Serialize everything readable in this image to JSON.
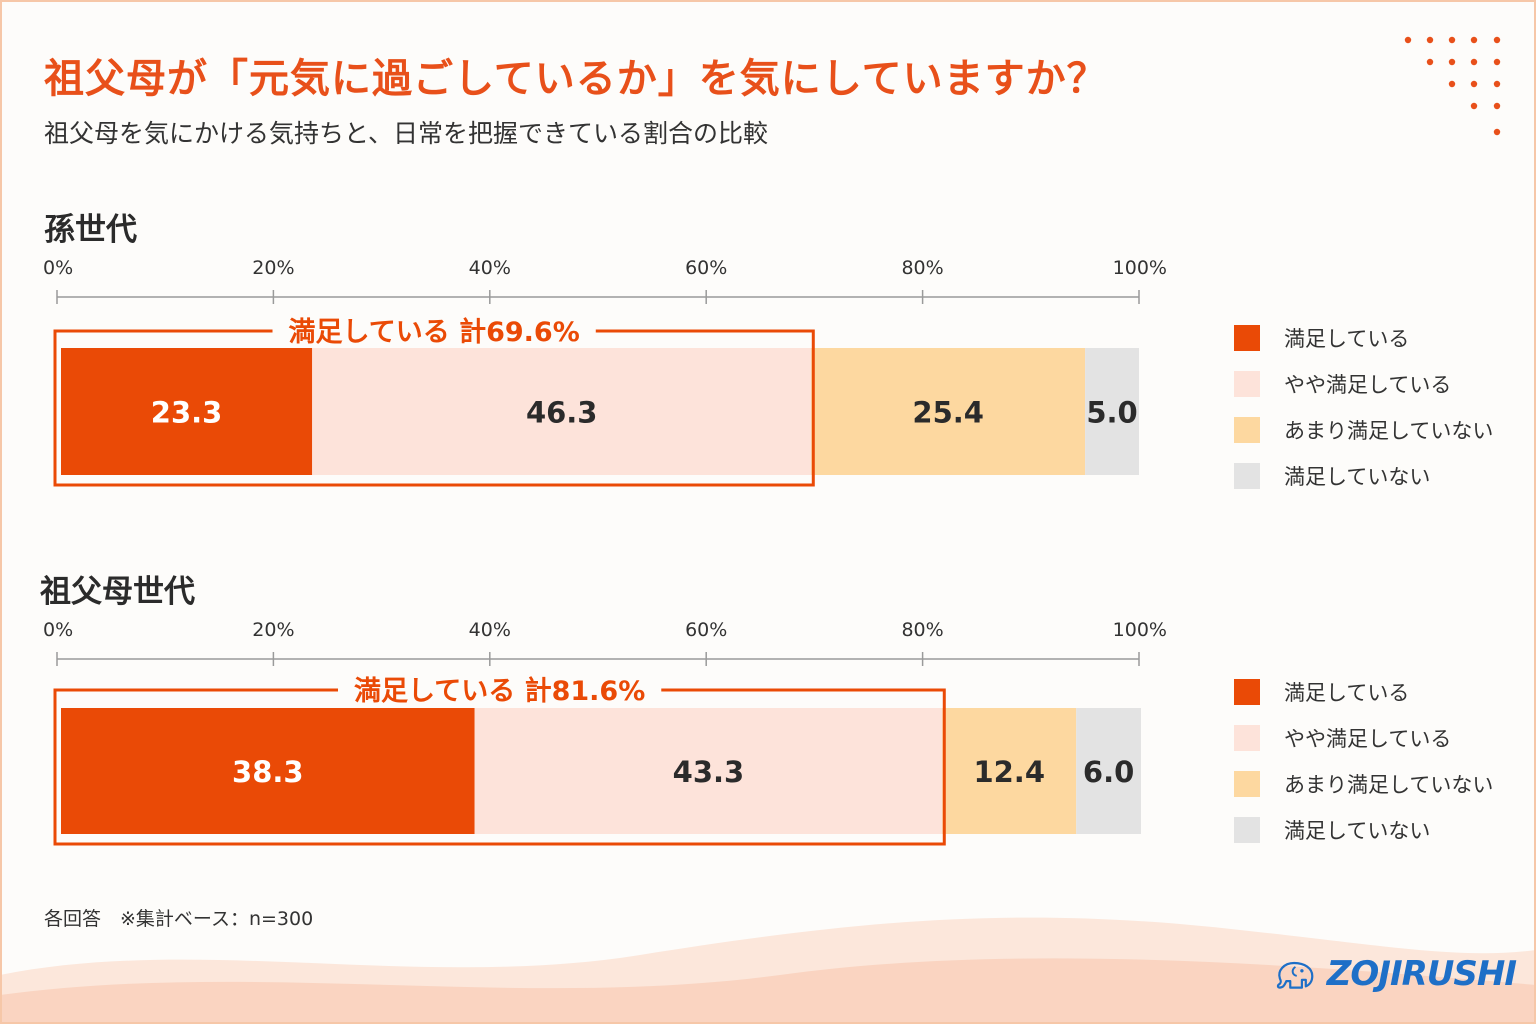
{
  "header": {
    "title": "祖父母が「元気に過ごしているか」を気にしていますか？",
    "subtitle": "祖父母を気にかける気持ちと、日常を把握できている割合の比較"
  },
  "colors": {
    "accent": "#e8501a",
    "satisfied": "#ea4a06",
    "somewhat_satisfied": "#fde3da",
    "not_very_satisfied": "#fdd8a0",
    "not_satisfied": "#e3e3e3"
  },
  "chart_data": [
    {
      "type": "bar",
      "orientation": "horizontal-stacked",
      "title": "孫世代",
      "xlim": [
        0,
        100
      ],
      "ticks": [
        "0%",
        "20%",
        "40%",
        "60%",
        "80%",
        "100%"
      ],
      "series": [
        {
          "name": "満足している",
          "values": [
            23.3
          ],
          "labels": [
            "23.3"
          ]
        },
        {
          "name": "やや満足している",
          "values": [
            46.3
          ],
          "labels": [
            "46.3"
          ]
        },
        {
          "name": "あまり満足していない",
          "values": [
            25.4
          ],
          "labels": [
            "25.4"
          ]
        },
        {
          "name": "満足していない",
          "values": [
            5.0
          ],
          "labels": [
            "5.0"
          ]
        }
      ],
      "annotation": {
        "text": "満足している 計69.6%",
        "total": 69.6
      },
      "legend": [
        "満足している",
        "やや満足している",
        "あまり満足していない",
        "満足していない"
      ],
      "legend_position": "right"
    },
    {
      "type": "bar",
      "orientation": "horizontal-stacked",
      "title": "祖父母世代",
      "xlim": [
        0,
        100
      ],
      "ticks": [
        "0%",
        "20%",
        "40%",
        "60%",
        "80%",
        "100%"
      ],
      "series": [
        {
          "name": "満足している",
          "values": [
            38.3
          ],
          "labels": [
            "38.3"
          ]
        },
        {
          "name": "やや満足している",
          "values": [
            43.3
          ],
          "labels": [
            "43.3"
          ]
        },
        {
          "name": "あまり満足していない",
          "values": [
            12.4
          ],
          "labels": [
            "12.4"
          ]
        },
        {
          "name": "満足していない",
          "values": [
            6.0
          ],
          "labels": [
            "6.0"
          ]
        }
      ],
      "annotation": {
        "text": "満足している 計81.6%",
        "total": 81.6
      },
      "legend": [
        "満足している",
        "やや満足している",
        "あまり満足していない",
        "満足していない"
      ],
      "legend_position": "right"
    }
  ],
  "footer": {
    "note": "各回答　※集計ベース：n=300",
    "logo_text": "ZOJIRUSHI",
    "logo_icon": "elephant-icon"
  }
}
